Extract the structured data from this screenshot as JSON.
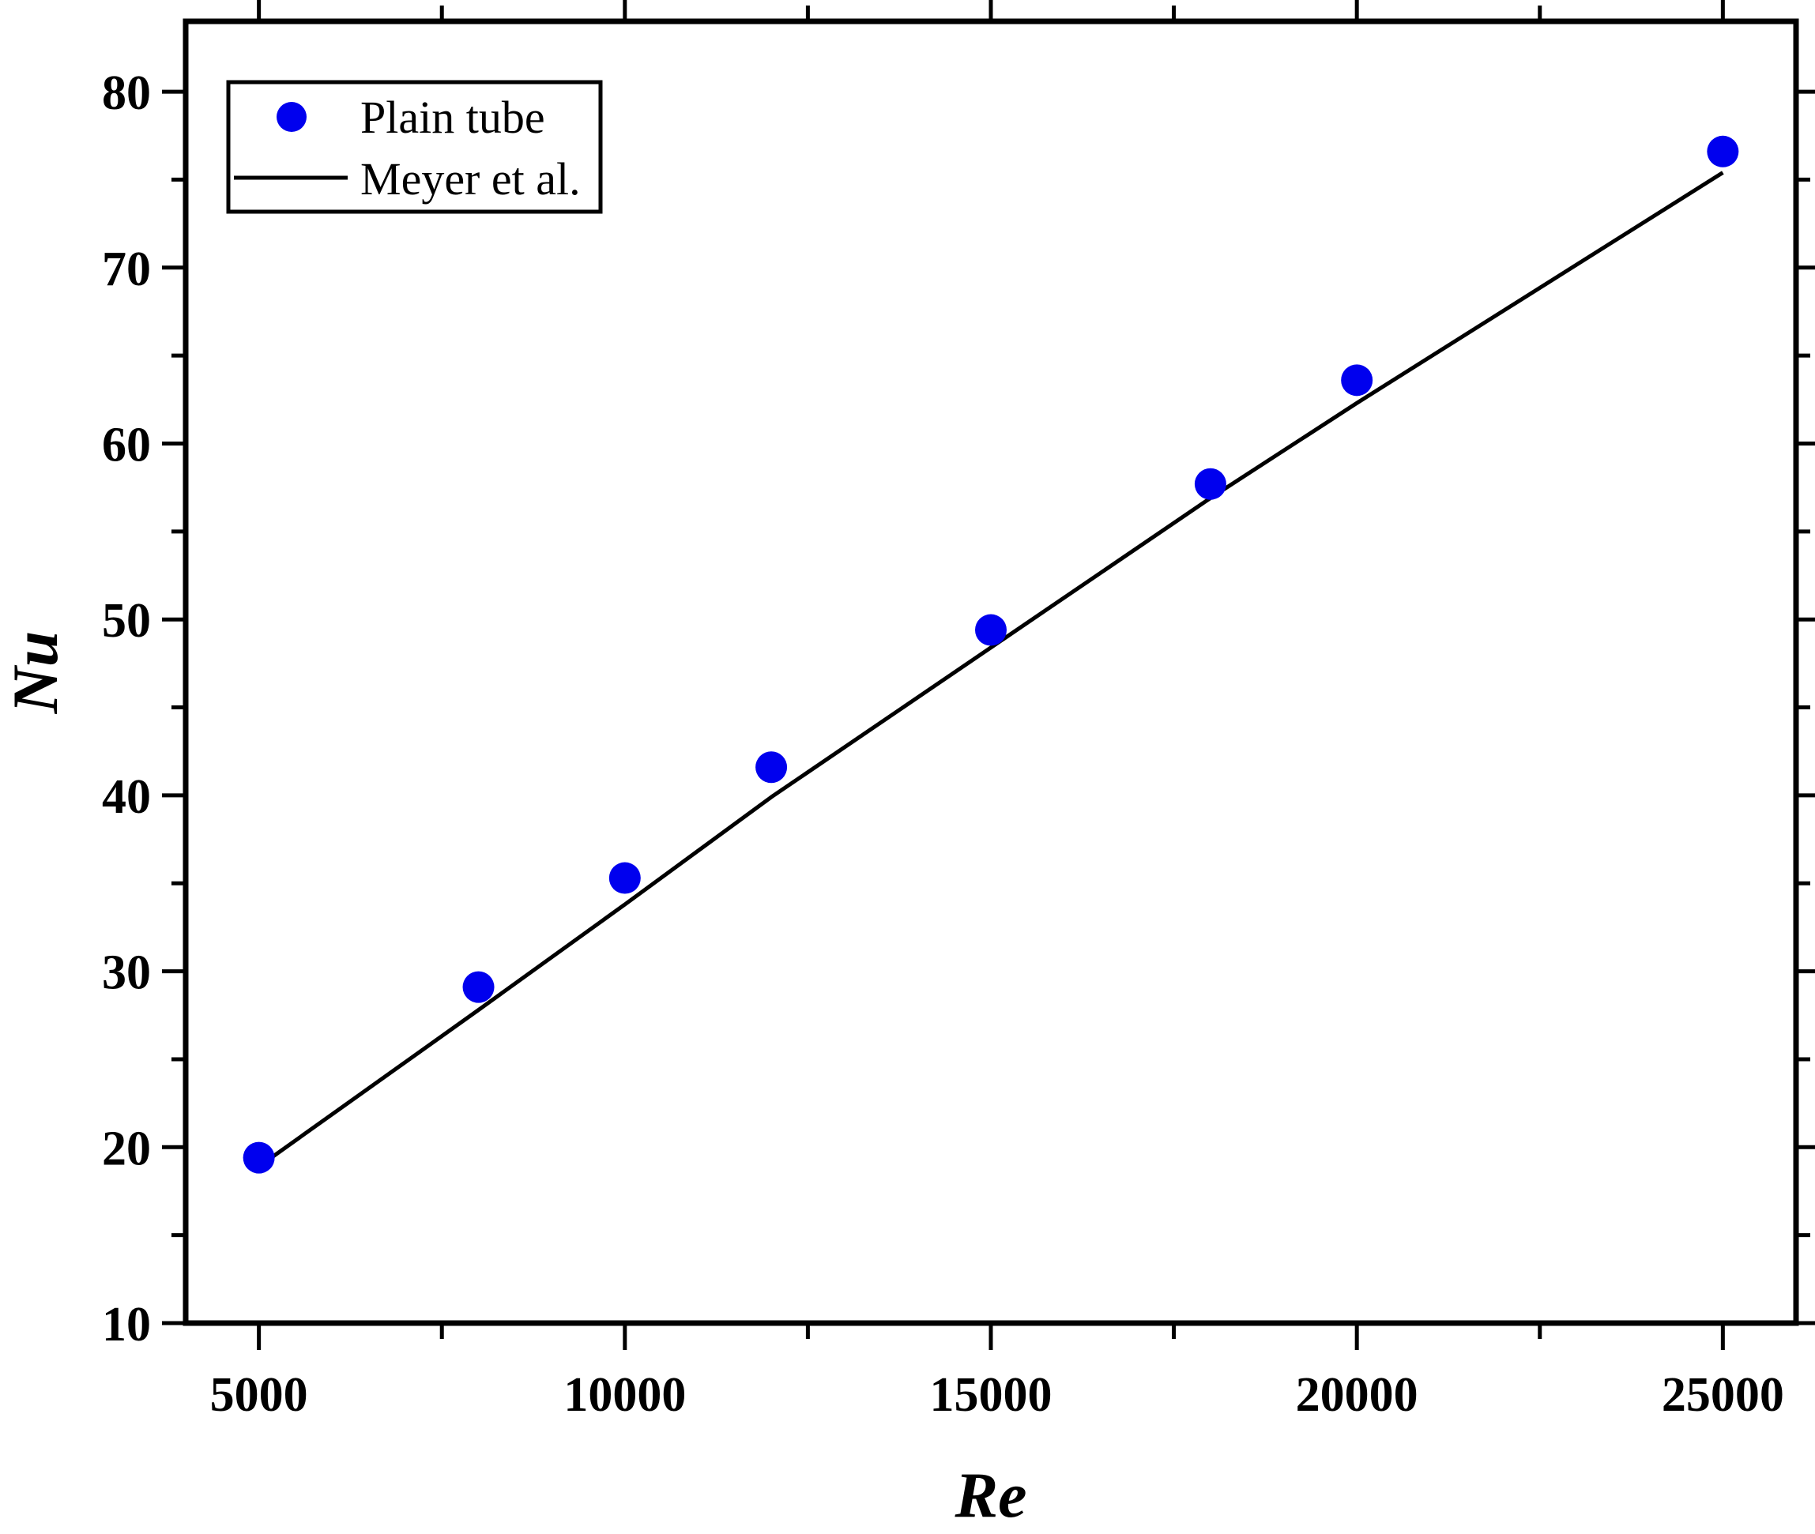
{
  "chart_data": {
    "type": "scatter",
    "title": "",
    "xlabel": "Re",
    "ylabel": "Nu",
    "xlim": [
      4000,
      26000
    ],
    "ylim": [
      10,
      84
    ],
    "xticks": [
      5000,
      10000,
      15000,
      20000,
      25000
    ],
    "xtick_labels": [
      "5000",
      "10000",
      "15000",
      "20000",
      "25000"
    ],
    "yticks": [
      10,
      20,
      30,
      40,
      50,
      60,
      70,
      80
    ],
    "ytick_labels": [
      "10",
      "20",
      "30",
      "40",
      "50",
      "60",
      "70",
      "80"
    ],
    "grid": false,
    "legend_position": "top-left",
    "series": [
      {
        "name": "Plain tube",
        "kind": "scatter",
        "color": "#0000ee",
        "x": [
          5000,
          8000,
          10000,
          12000,
          15000,
          18000,
          20000,
          25000
        ],
        "y": [
          19.4,
          29.1,
          35.3,
          41.6,
          49.4,
          57.7,
          63.6,
          76.6
        ]
      },
      {
        "name": "Meyer et al.",
        "kind": "line",
        "color": "#000000",
        "x": [
          5000,
          8000,
          10000,
          12000,
          15000,
          18000,
          20000,
          25000
        ],
        "y": [
          18.9,
          27.8,
          33.8,
          39.9,
          48.4,
          56.9,
          62.3,
          75.4
        ]
      }
    ]
  }
}
